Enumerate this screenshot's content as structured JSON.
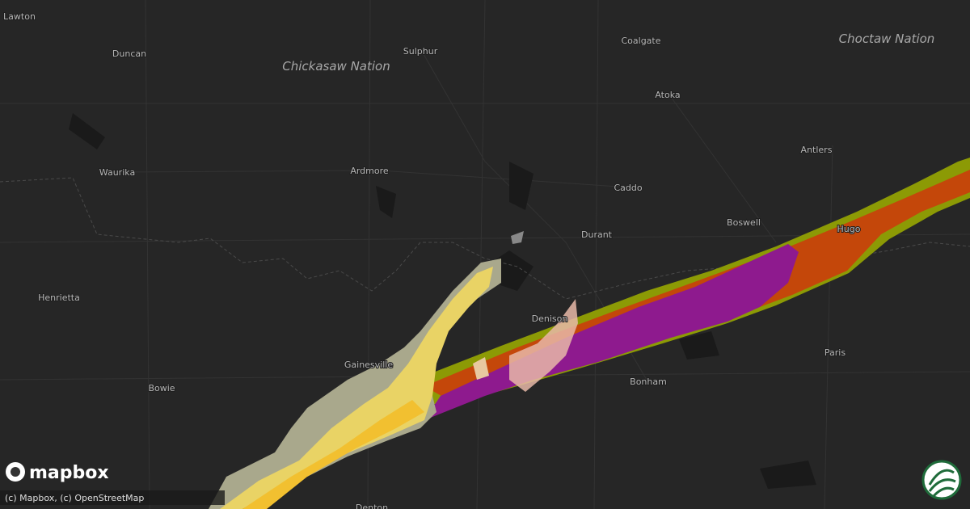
{
  "labels": [
    "Lawton",
    "Duncan",
    "Chickasaw Nation",
    "Sulphur",
    "Coalgate",
    "Choctaw Nation",
    "Atoka",
    "Waurika",
    "Ardmore",
    "Antlers",
    "Caddo",
    "Boswell",
    "Durant",
    "Hugo",
    "Henrietta",
    "Denison",
    "Paris",
    "Gainesville",
    "Bonham",
    "Bowie",
    "Denton"
  ],
  "logo": "mapbox",
  "attribution": "(c) Mapbox, (c) OpenStreetMap"
}
